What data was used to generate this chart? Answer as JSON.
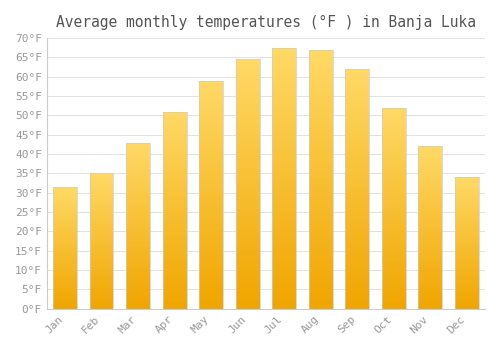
{
  "title": "Average monthly temperatures (°F ) in Banja Luka",
  "months": [
    "Jan",
    "Feb",
    "Mar",
    "Apr",
    "May",
    "Jun",
    "Jul",
    "Aug",
    "Sep",
    "Oct",
    "Nov",
    "Dec"
  ],
  "values": [
    31.5,
    35.0,
    43.0,
    51.0,
    59.0,
    64.5,
    67.5,
    67.0,
    62.0,
    52.0,
    42.0,
    34.0
  ],
  "bar_color_top": "#FFD966",
  "bar_color_bottom": "#F0A500",
  "bar_edge_color": "#E8E8E8",
  "background_color": "#FFFFFF",
  "grid_color": "#DDDDDD",
  "text_color": "#999999",
  "axis_color": "#AAAAAA",
  "ylim": [
    0,
    70
  ],
  "ytick_step": 5,
  "title_fontsize": 10.5,
  "tick_fontsize": 8,
  "bar_width": 0.65
}
